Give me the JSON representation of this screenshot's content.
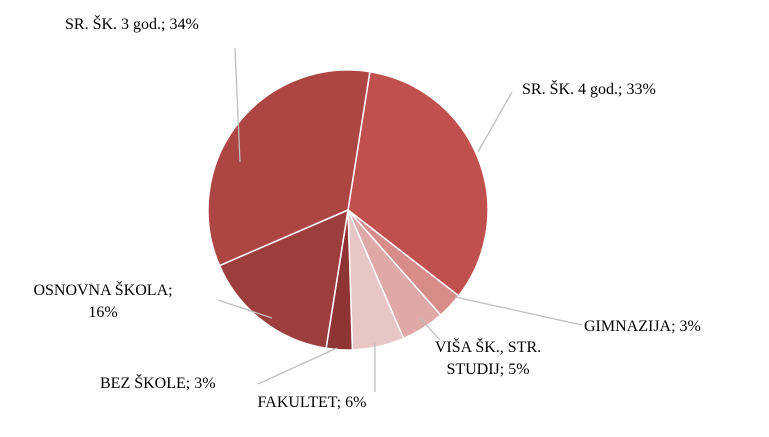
{
  "chart_data": {
    "type": "pie",
    "labels": [
      [
        "SR. ŠK. 4 god.; 33%"
      ],
      [
        "GIMNAZIJA; 3%"
      ],
      [
        "VIŠA ŠK., STR.",
        "STUDIJ; 5%"
      ],
      [
        "FAKULTET; 6%"
      ],
      [
        "BEZ ŠKOLE; 3%"
      ],
      [
        "OSNOVNA ŠKOLA;",
        "16%"
      ],
      [
        "SR. ŠK. 3 god.; 34%"
      ]
    ],
    "values": [
      33,
      3,
      5,
      6,
      3,
      16,
      34
    ],
    "colors": [
      "#c0504d",
      "#d78c8a",
      "#dfa9a8",
      "#e8c6c6",
      "#8e3432",
      "#9c3e3c",
      "#ad4542"
    ]
  }
}
